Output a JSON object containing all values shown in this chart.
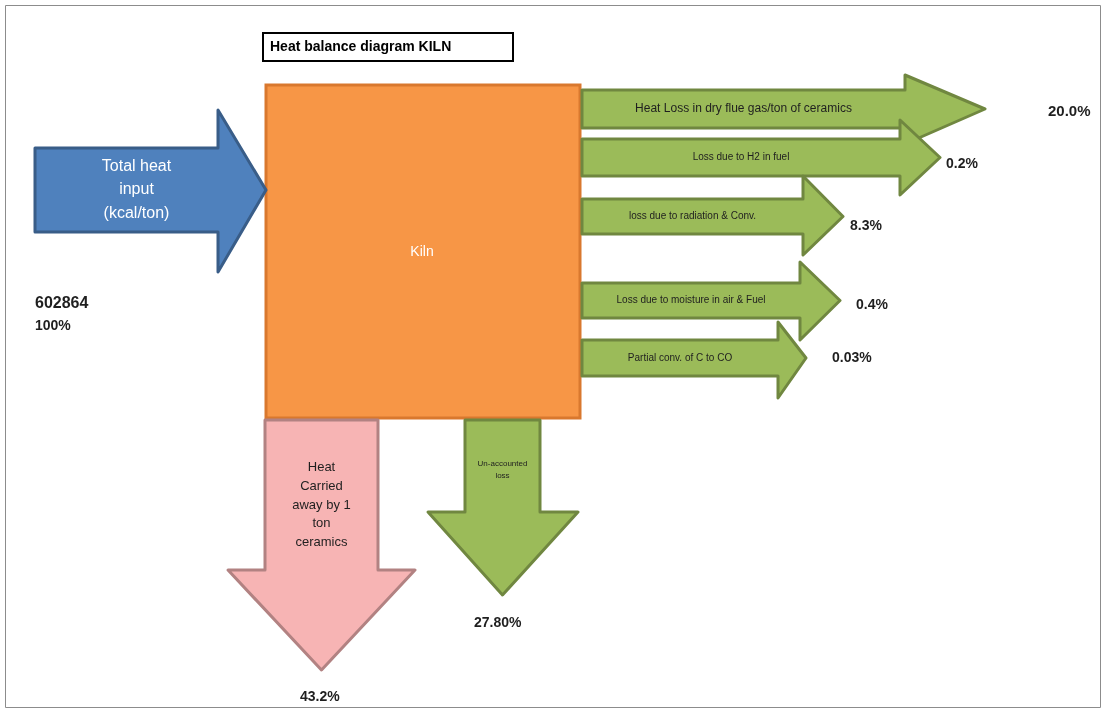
{
  "chart_data": {
    "type": "other",
    "title": "Heat balance diagram KILN",
    "categories": [
      "Total heat input (kcal/ton)",
      "Heat Loss in dry flue gas/ton of ceramics",
      "Loss due to H2 in fuel",
      "loss due to radiation & Conv.",
      "Loss due to moisture in air & Fuel",
      "Partial conv. of C to CO",
      "Un-accounted loss",
      "Heat Carried away by 1 ton ceramics"
    ],
    "values": [
      100,
      20.0,
      0.2,
      8.3,
      0.4,
      0.03,
      27.8,
      43.2
    ],
    "value_labels": [
      "100%",
      "20.0%",
      "0.2%",
      "8.3%",
      "0.4%",
      "0.03%",
      "27.80%",
      "43.2%"
    ],
    "colors": [
      "#4f81bd",
      "#9bbb59",
      "#9bbb59",
      "#9bbb59",
      "#9bbb59",
      "#9bbb59",
      "#9bbb59",
      "#f7b4b4"
    ],
    "annotations": [
      "602864",
      "Kiln"
    ]
  }
}
